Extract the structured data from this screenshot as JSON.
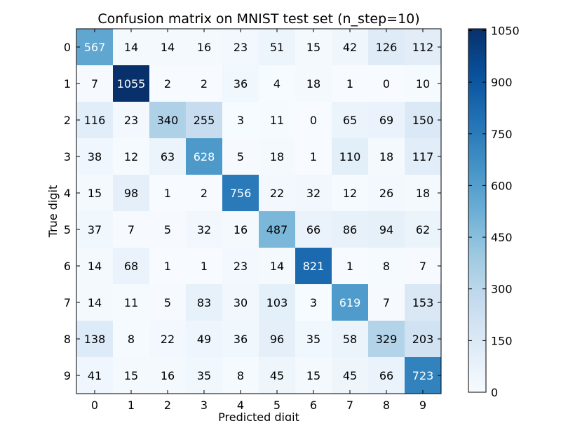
{
  "chart_data": {
    "type": "heatmap",
    "title": "Confusion matrix on MNIST test set (n_step=10)",
    "xlabel": "Predicted digit",
    "ylabel": "True digit",
    "x_categories": [
      "0",
      "1",
      "2",
      "3",
      "4",
      "5",
      "6",
      "7",
      "8",
      "9"
    ],
    "y_categories": [
      "0",
      "1",
      "2",
      "3",
      "4",
      "5",
      "6",
      "7",
      "8",
      "9"
    ],
    "matrix": [
      [
        567,
        14,
        14,
        16,
        23,
        51,
        15,
        42,
        126,
        112
      ],
      [
        7,
        1055,
        2,
        2,
        36,
        4,
        18,
        1,
        0,
        10
      ],
      [
        116,
        23,
        340,
        255,
        3,
        11,
        0,
        65,
        69,
        150
      ],
      [
        38,
        12,
        63,
        628,
        5,
        18,
        1,
        110,
        18,
        117
      ],
      [
        15,
        98,
        1,
        2,
        756,
        22,
        32,
        12,
        26,
        18
      ],
      [
        37,
        7,
        5,
        32,
        16,
        487,
        66,
        86,
        94,
        62
      ],
      [
        14,
        68,
        1,
        1,
        23,
        14,
        821,
        1,
        8,
        7
      ],
      [
        14,
        11,
        5,
        83,
        30,
        103,
        3,
        619,
        7,
        153
      ],
      [
        138,
        8,
        22,
        49,
        36,
        96,
        35,
        58,
        329,
        203
      ],
      [
        41,
        15,
        16,
        35,
        8,
        45,
        15,
        45,
        66,
        723
      ]
    ],
    "colormap": "Blues",
    "colorbar": {
      "min": 0,
      "max": 1055,
      "ticks": [
        0,
        150,
        300,
        450,
        600,
        750,
        900,
        1050
      ]
    }
  }
}
